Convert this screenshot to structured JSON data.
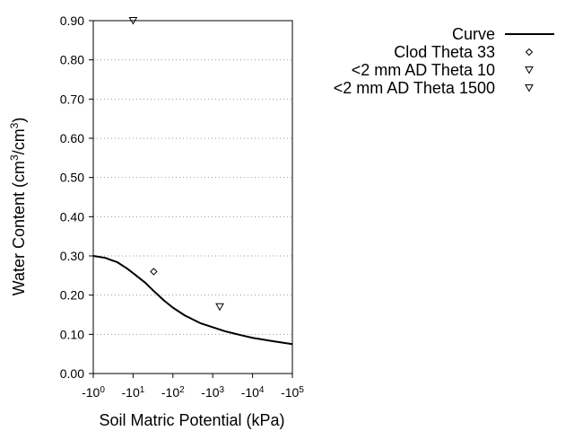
{
  "chart_data": {
    "type": "scatter",
    "xlabel": "Soil Matric Potential (kPa)",
    "ylabel_parts": {
      "main": "Water Content (cm",
      "sup1": "3",
      "mid": "/cm",
      "sup2": "3",
      "end": ")"
    },
    "x_scale": "log",
    "xlim": [
      1,
      100000
    ],
    "ylim": [
      0,
      0.9
    ],
    "x_ticks": [
      {
        "value": 1,
        "base": "-10",
        "exp": "0"
      },
      {
        "value": 10,
        "base": "-10",
        "exp": "1"
      },
      {
        "value": 100,
        "base": "-10",
        "exp": "2"
      },
      {
        "value": 1000,
        "base": "-10",
        "exp": "3"
      },
      {
        "value": 10000,
        "base": "-10",
        "exp": "4"
      },
      {
        "value": 100000,
        "base": "-10",
        "exp": "5"
      }
    ],
    "y_ticks": [
      {
        "value": 0.0,
        "label": "0.00"
      },
      {
        "value": 0.1,
        "label": "0.10"
      },
      {
        "value": 0.2,
        "label": "0.20"
      },
      {
        "value": 0.3,
        "label": "0.30"
      },
      {
        "value": 0.4,
        "label": "0.40"
      },
      {
        "value": 0.5,
        "label": "0.50"
      },
      {
        "value": 0.6,
        "label": "0.60"
      },
      {
        "value": 0.7,
        "label": "0.70"
      },
      {
        "value": 0.8,
        "label": "0.80"
      },
      {
        "value": 0.9,
        "label": "0.90"
      }
    ],
    "grid": "horizontal-dotted",
    "legend_position": "top-right",
    "series": [
      {
        "name": "Curve",
        "kind": "line",
        "color": "#000000",
        "points": [
          {
            "x": 1,
            "y": 0.3
          },
          {
            "x": 2,
            "y": 0.295
          },
          {
            "x": 4,
            "y": 0.284
          },
          {
            "x": 7,
            "y": 0.268
          },
          {
            "x": 10,
            "y": 0.256
          },
          {
            "x": 20,
            "y": 0.232
          },
          {
            "x": 35,
            "y": 0.208
          },
          {
            "x": 60,
            "y": 0.186
          },
          {
            "x": 100,
            "y": 0.168
          },
          {
            "x": 200,
            "y": 0.148
          },
          {
            "x": 500,
            "y": 0.128
          },
          {
            "x": 1000,
            "y": 0.118
          },
          {
            "x": 2000,
            "y": 0.108
          },
          {
            "x": 5000,
            "y": 0.098
          },
          {
            "x": 10000,
            "y": 0.091
          },
          {
            "x": 30000,
            "y": 0.083
          },
          {
            "x": 100000,
            "y": 0.075
          }
        ]
      },
      {
        "name": "Clod Theta 33",
        "kind": "scatter",
        "marker": "diamond",
        "points": [
          {
            "x": 33,
            "y": 0.26
          }
        ]
      },
      {
        "name": "<2 mm AD Theta 10",
        "kind": "scatter",
        "marker": "triangle-down",
        "points": [
          {
            "x": 10,
            "y": 0.9
          }
        ]
      },
      {
        "name": "<2 mm AD Theta 1500",
        "kind": "scatter",
        "marker": "triangle-down",
        "points": [
          {
            "x": 1500,
            "y": 0.17
          }
        ]
      }
    ]
  }
}
